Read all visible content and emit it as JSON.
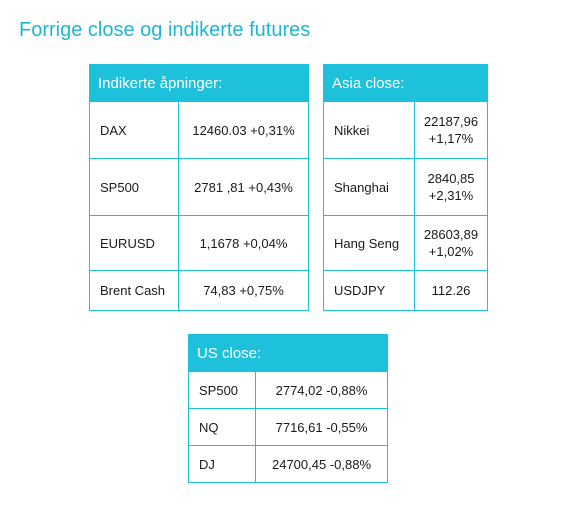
{
  "title": "Forrige close og indikerte futures",
  "openings": {
    "header": "Indikerte åpninger:",
    "rows": [
      {
        "label": "DAX",
        "value": "12460.03 +0,31%"
      },
      {
        "label": "SP500",
        "value": "2781 ,81 +0,43%"
      },
      {
        "label": "EURUSD",
        "value": "1,1678 +0,04%"
      },
      {
        "label": "Brent Cash",
        "value": "74,83 +0,75%"
      }
    ]
  },
  "asia": {
    "header": "Asia close:",
    "rows": [
      {
        "label": "Nikkei",
        "value_line1": "22187,96",
        "value_line2": "+1,17%"
      },
      {
        "label": "Shanghai",
        "value_line1": "2840,85",
        "value_line2": "+2,31%"
      },
      {
        "label": "Hang Seng",
        "value_line1": "28603,89",
        "value_line2": "+1,02%"
      },
      {
        "label": "USDJPY",
        "value_line1": "112.26",
        "value_line2": ""
      }
    ]
  },
  "us": {
    "header": "US close:",
    "rows": [
      {
        "label": "SP500",
        "value": "2774,02 -0,88%"
      },
      {
        "label": "NQ",
        "value": "7716,61 -0,55%"
      },
      {
        "label": "DJ",
        "value": "24700,45 -0,88%"
      }
    ]
  },
  "colors": {
    "accent": "#1ec1dc",
    "title": "#1fb6d2"
  }
}
